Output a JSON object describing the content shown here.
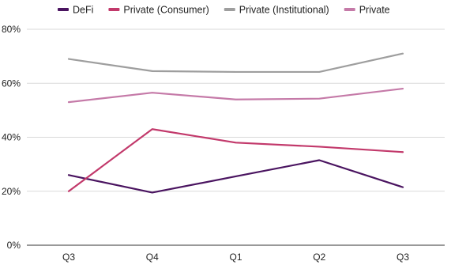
{
  "chart_data": {
    "type": "line",
    "title": "",
    "xlabel": "",
    "ylabel": "",
    "categories": [
      "Q3",
      "Q4",
      "Q1",
      "Q2",
      "Q3"
    ],
    "ylim": [
      0,
      80
    ],
    "yticks": [
      0,
      20,
      40,
      60,
      80
    ],
    "ytick_labels": [
      "0%",
      "20%",
      "40%",
      "60%",
      "80%"
    ],
    "grid": true,
    "legend_position": "top",
    "series": [
      {
        "name": "DeFi",
        "color": "#4a1460",
        "values": [
          26,
          19.5,
          25.5,
          31.5,
          21.5
        ]
      },
      {
        "name": "Private (Consumer)",
        "color": "#c2396b",
        "values": [
          20,
          43,
          38,
          36.5,
          34.5
        ]
      },
      {
        "name": "Private (Institutional)",
        "color": "#9e9e9e",
        "values": [
          69,
          64.5,
          64.2,
          64.2,
          71
        ]
      },
      {
        "name": "Private",
        "color": "#c57aa8",
        "values": [
          53,
          56.5,
          54,
          54.3,
          58
        ]
      }
    ]
  }
}
